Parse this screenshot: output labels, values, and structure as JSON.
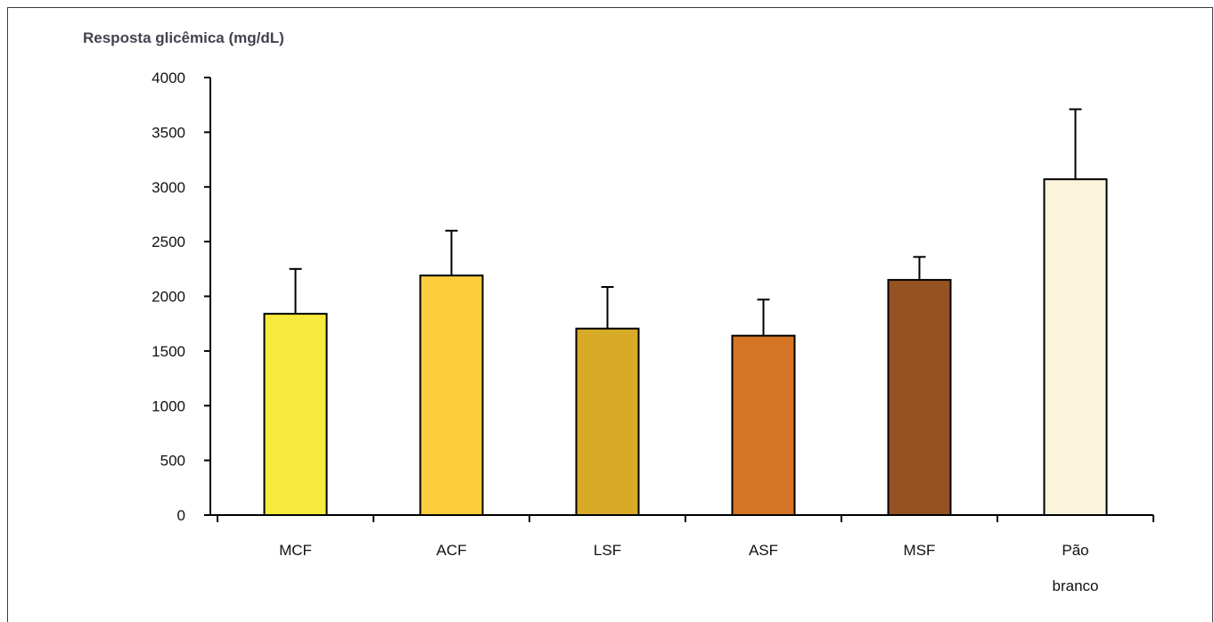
{
  "chart_data": {
    "type": "bar",
    "ylabel": "Resposta glicêmica (mg/dL)",
    "ylim": [
      0,
      4000
    ],
    "yticks": [
      0,
      500,
      1000,
      1500,
      2000,
      2500,
      3000,
      3500,
      4000
    ],
    "grid": false,
    "error_bars": true,
    "categories": [
      {
        "label": "MCF",
        "value": 1840,
        "error": 410,
        "color": "#f8ea3c"
      },
      {
        "label": "ACF",
        "value": 2190,
        "error": 410,
        "color": "#fcce3e"
      },
      {
        "label": "LSF",
        "value": 1705,
        "error": 380,
        "color": "#d7aa28"
      },
      {
        "label": "ASF",
        "value": 1640,
        "error": 330,
        "color": "#d57424"
      },
      {
        "label": "MSF",
        "value": 2150,
        "error": 210,
        "color": "#955222"
      },
      {
        "label": [
          "Pão",
          "branco"
        ],
        "value": 3070,
        "error": 640,
        "color": "#fbf3da"
      }
    ]
  }
}
